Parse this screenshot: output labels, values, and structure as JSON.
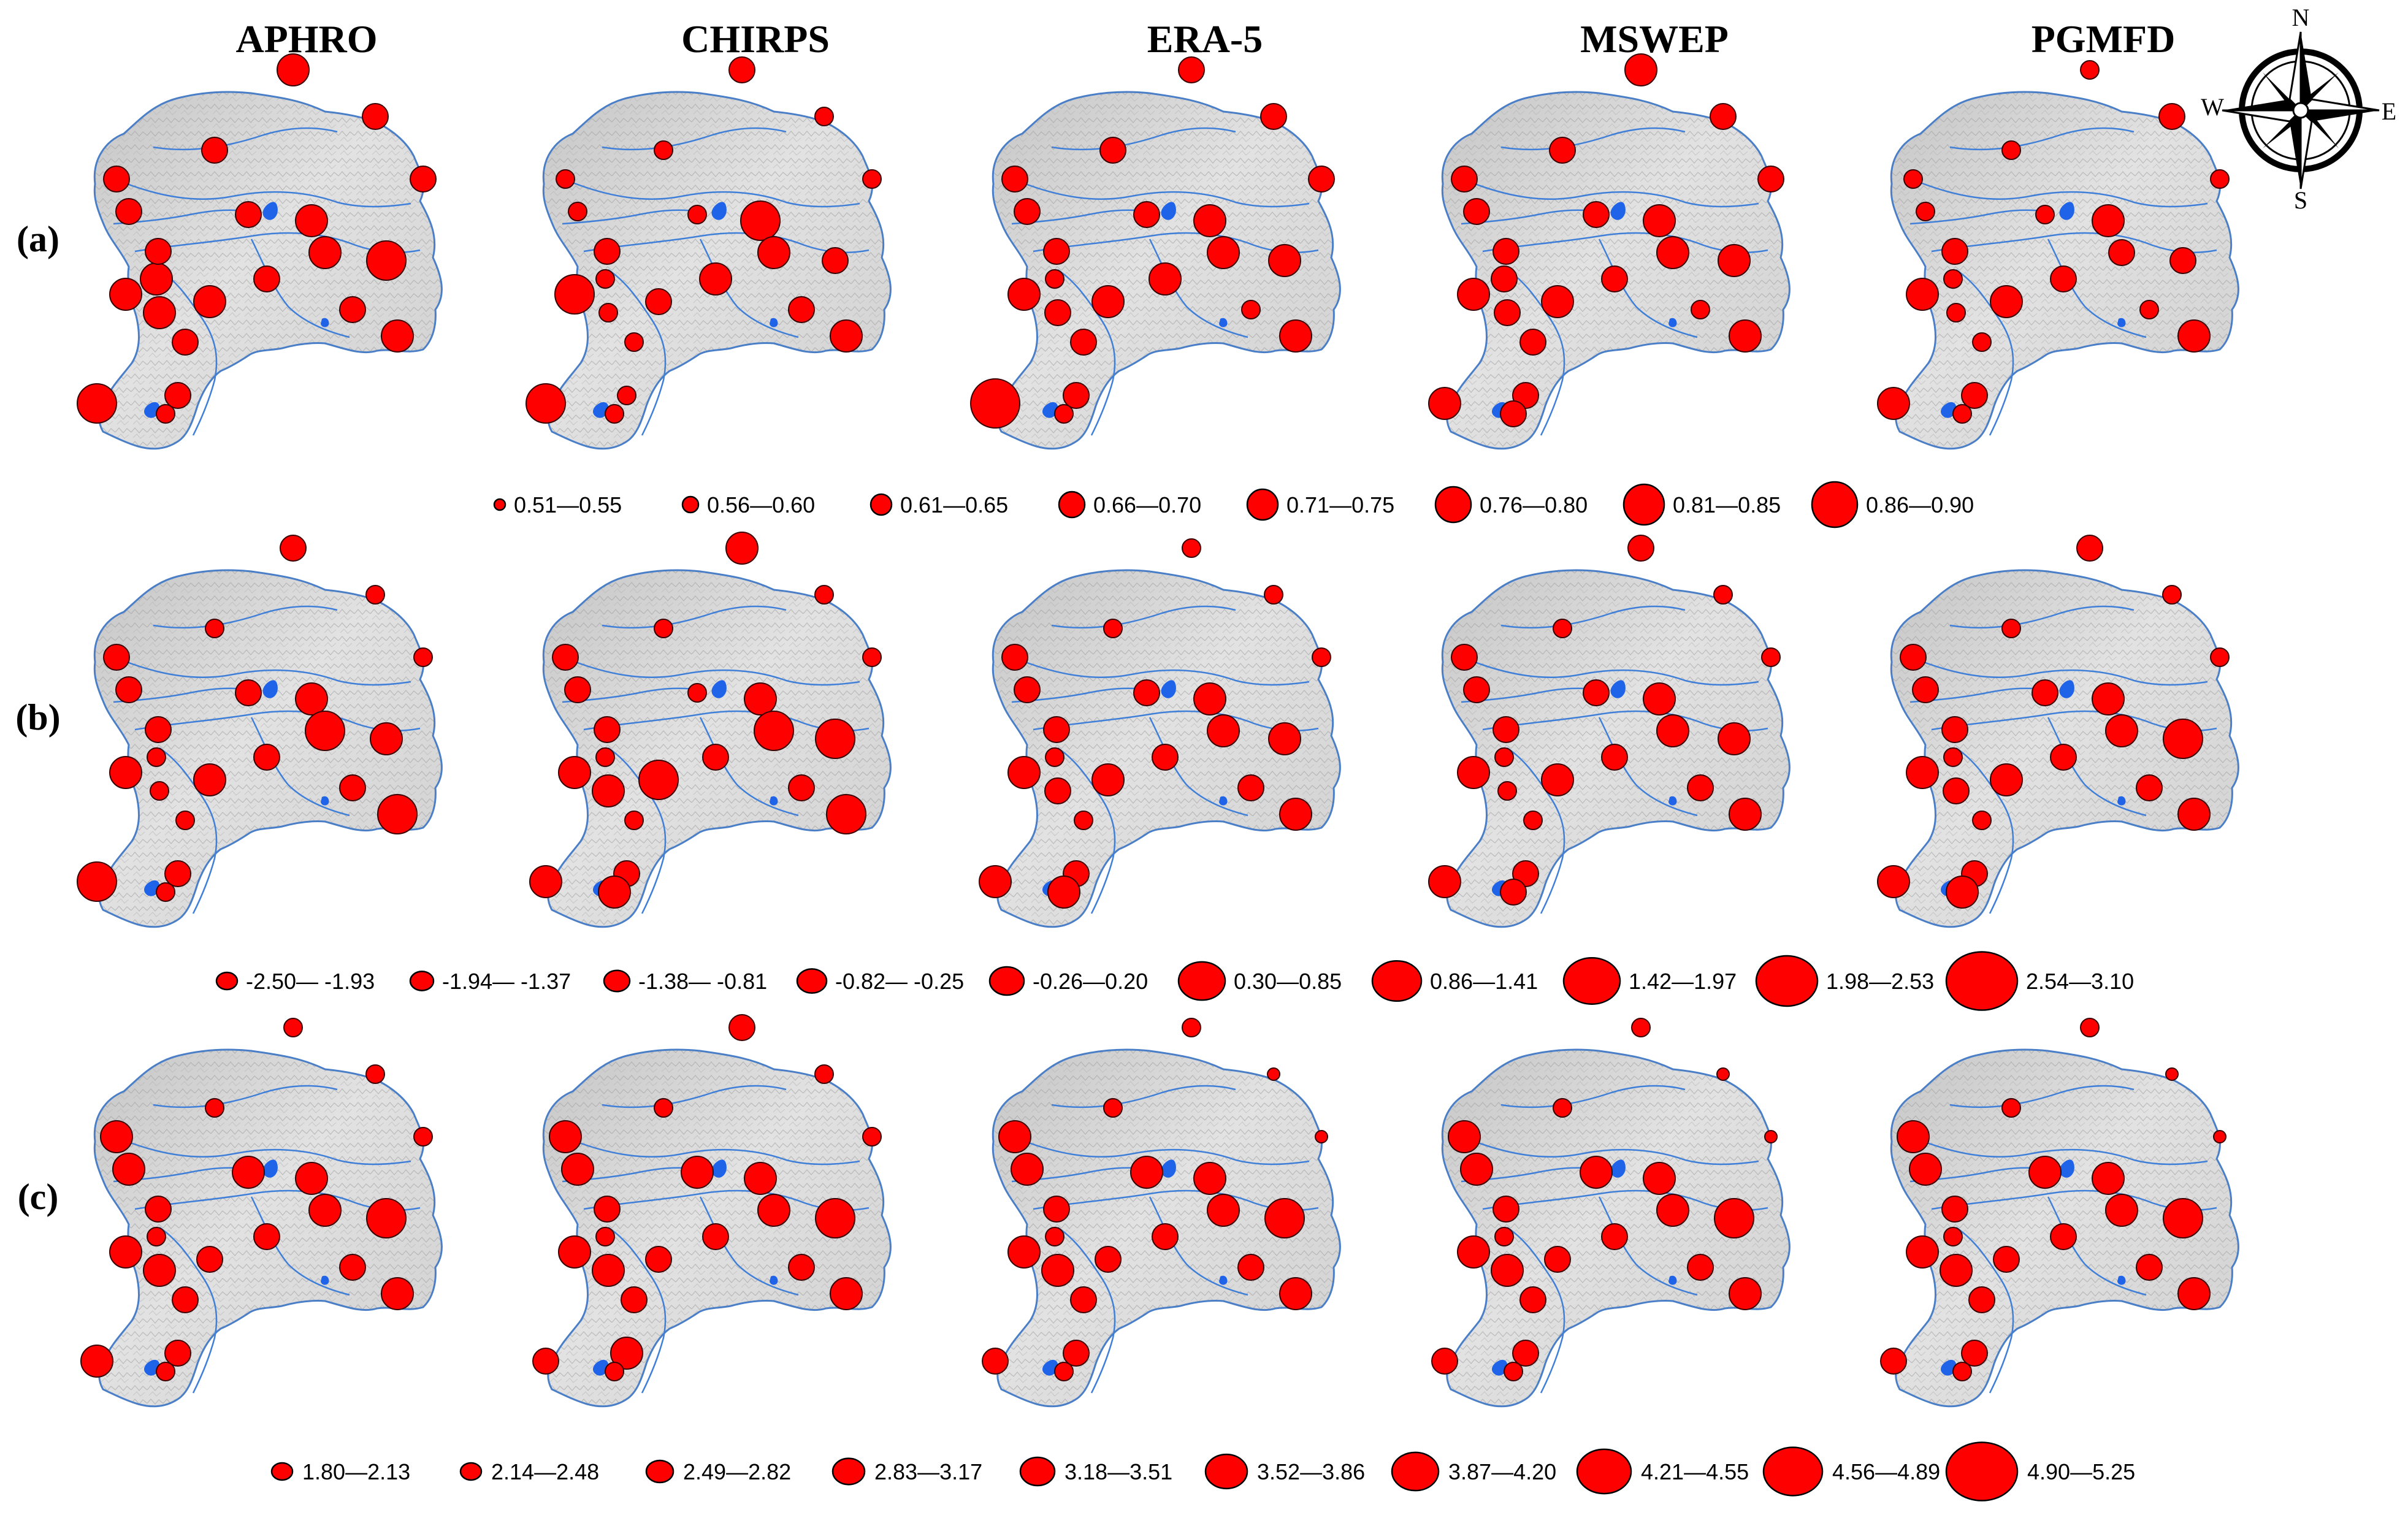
{
  "figure": {
    "columns": [
      "APHRO",
      "CHIRPS",
      "ERA-5",
      "MSWEP",
      "PGMFD"
    ],
    "rows": [
      "(a)",
      "(b)",
      "(c)"
    ],
    "compass": {
      "N": "N",
      "S": "S",
      "E": "E",
      "W": "W"
    },
    "colors": {
      "marker_fill": "#ff0000",
      "marker_stroke": "#3a0000",
      "terrain_fill": "#d4d4d4",
      "boundary": "#4a7fc7",
      "river": "#3f7fd8",
      "lake": "#1f63e8"
    }
  },
  "legends": [
    {
      "row": "(a)",
      "classes": [
        "0.51—0.55",
        "0.56—0.60",
        "0.61—0.65",
        "0.66—0.70",
        "0.71—0.75",
        "0.76—0.80",
        "0.81—0.85",
        "0.86—0.90"
      ]
    },
    {
      "row": "(b)",
      "classes": [
        "-2.50— -1.93",
        "-1.94— -1.37",
        "-1.38— -0.81",
        "-0.82— -0.25",
        "-0.26—0.20",
        "0.30—0.85",
        "0.86—1.41",
        "1.42—1.97",
        "1.98—2.53",
        "2.54—3.10"
      ]
    },
    {
      "row": "(c)",
      "classes": [
        "1.80—2.13",
        "2.14—2.48",
        "2.49—2.82",
        "2.83—3.17",
        "3.18—3.51",
        "3.52—3.86",
        "3.87—4.20",
        "4.21—4.55",
        "4.56—4.89",
        "4.90—5.25"
      ]
    }
  ],
  "stations": {
    "(a)": {
      "APHRO": [
        4,
        3,
        3,
        3,
        3,
        5,
        3,
        3,
        4,
        4,
        4,
        4,
        3,
        3,
        5,
        2,
        3,
        4,
        3,
        3,
        4,
        4
      ],
      "CHIRPS": [
        3,
        2,
        2,
        2,
        2,
        3,
        2,
        2,
        5,
        5,
        2,
        2,
        2,
        2,
        5,
        2,
        3,
        3,
        4,
        3,
        4,
        4
      ],
      "ERA-5": [
        3,
        3,
        3,
        3,
        3,
        4,
        3,
        3,
        4,
        4,
        2,
        3,
        3,
        3,
        6,
        2,
        3,
        4,
        4,
        2,
        4,
        4
      ],
      "MSWEP": [
        4,
        3,
        3,
        3,
        3,
        4,
        3,
        3,
        4,
        4,
        3,
        3,
        3,
        3,
        4,
        3,
        3,
        4,
        3,
        2,
        4,
        4
      ],
      "PGMFD": [
        2,
        3,
        2,
        2,
        2,
        3,
        2,
        2,
        4,
        4,
        2,
        2,
        2,
        3,
        4,
        2,
        3,
        4,
        3,
        2,
        3,
        4
      ]
    },
    "(b)": {
      "APHRO": [
        3,
        2,
        2,
        3,
        3,
        4,
        2,
        3,
        4,
        4,
        2,
        2,
        2,
        3,
        5,
        2,
        3,
        4,
        3,
        3,
        5,
        5
      ],
      "CHIRPS": [
        4,
        2,
        2,
        3,
        3,
        5,
        2,
        2,
        4,
        4,
        2,
        4,
        2,
        3,
        4,
        4,
        3,
        5,
        3,
        3,
        5,
        5
      ],
      "ERA-5": [
        2,
        2,
        2,
        3,
        3,
        4,
        2,
        3,
        4,
        4,
        2,
        3,
        2,
        3,
        4,
        4,
        3,
        4,
        3,
        3,
        4,
        4
      ],
      "MSWEP": [
        3,
        2,
        2,
        3,
        3,
        4,
        2,
        3,
        4,
        4,
        2,
        2,
        2,
        3,
        4,
        3,
        3,
        4,
        3,
        3,
        4,
        4
      ],
      "PGMFD": [
        3,
        2,
        2,
        3,
        3,
        5,
        2,
        3,
        4,
        4,
        2,
        3,
        2,
        3,
        4,
        4,
        3,
        4,
        3,
        3,
        4,
        4
      ]
    },
    "(c)": {
      "APHRO": [
        2,
        2,
        2,
        4,
        4,
        5,
        2,
        4,
        4,
        4,
        2,
        4,
        3,
        3,
        4,
        2,
        3,
        3,
        3,
        3,
        4,
        4
      ],
      "CHIRPS": [
        3,
        2,
        2,
        4,
        4,
        5,
        2,
        4,
        4,
        4,
        2,
        4,
        3,
        4,
        3,
        2,
        3,
        3,
        3,
        3,
        4,
        4
      ],
      "ERA-5": [
        2,
        1,
        1,
        4,
        4,
        5,
        2,
        4,
        4,
        4,
        2,
        4,
        3,
        3,
        3,
        2,
        3,
        3,
        3,
        3,
        4,
        4
      ],
      "MSWEP": [
        2,
        1,
        1,
        4,
        4,
        5,
        2,
        4,
        4,
        4,
        2,
        4,
        3,
        3,
        3,
        2,
        3,
        3,
        3,
        3,
        4,
        4
      ],
      "PGMFD": [
        2,
        1,
        1,
        4,
        4,
        5,
        2,
        4,
        4,
        4,
        2,
        4,
        3,
        3,
        3,
        2,
        3,
        3,
        3,
        3,
        4,
        4
      ]
    }
  }
}
